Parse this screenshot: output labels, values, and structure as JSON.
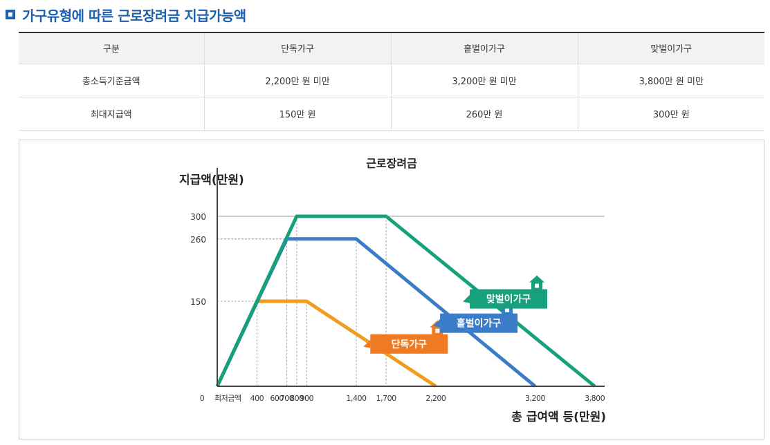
{
  "page": {
    "title": "가구유형에 따른 근로장려금 지급가능액"
  },
  "table": {
    "headers": [
      "구분",
      "단독가구",
      "홑벌이가구",
      "맞벌이가구"
    ],
    "rows": [
      [
        "총소득기준금액",
        "2,200만 원 미만",
        "3,200만 원 미만",
        "3,800만 원 미만"
      ],
      [
        "최대지급액",
        "150만 원",
        "260만 원",
        "300만 원"
      ]
    ]
  },
  "chart_data": {
    "type": "line",
    "title": "근로장려금",
    "ylabel": "지급액(만원)",
    "xlabel": "총 급여액 등(만원)",
    "x_ticks": [
      "0",
      "최저금액",
      "400",
      "600",
      "700",
      "800",
      "900",
      "1,400",
      "1,700",
      "2,200",
      "3,200",
      "3,800"
    ],
    "y_ticks": [
      "150",
      "260",
      "300"
    ],
    "series": [
      {
        "name": "단독가구",
        "color": "#f29c1f",
        "label_color": "#f07a22",
        "points": [
          [
            0,
            0
          ],
          [
            400,
            150
          ],
          [
            900,
            150
          ],
          [
            2200,
            0
          ]
        ]
      },
      {
        "name": "홑벌이가구",
        "color": "#3a7cc7",
        "label_color": "#3a7cc7",
        "points": [
          [
            0,
            0
          ],
          [
            700,
            260
          ],
          [
            1400,
            260
          ],
          [
            3200,
            0
          ]
        ]
      },
      {
        "name": "맞벌이가구",
        "color": "#16a07c",
        "label_color": "#16a07c",
        "points": [
          [
            0,
            0
          ],
          [
            800,
            300
          ],
          [
            1700,
            300
          ],
          [
            3800,
            0
          ]
        ]
      }
    ]
  }
}
